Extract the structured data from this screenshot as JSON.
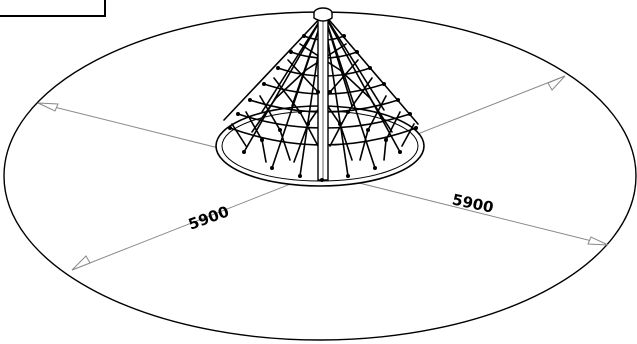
{
  "diagram": {
    "dimension_left": "5900",
    "dimension_right": "5900"
  },
  "colors": {
    "line": "#000000",
    "dimension_line": "#8a8a8a",
    "background": "#ffffff"
  }
}
